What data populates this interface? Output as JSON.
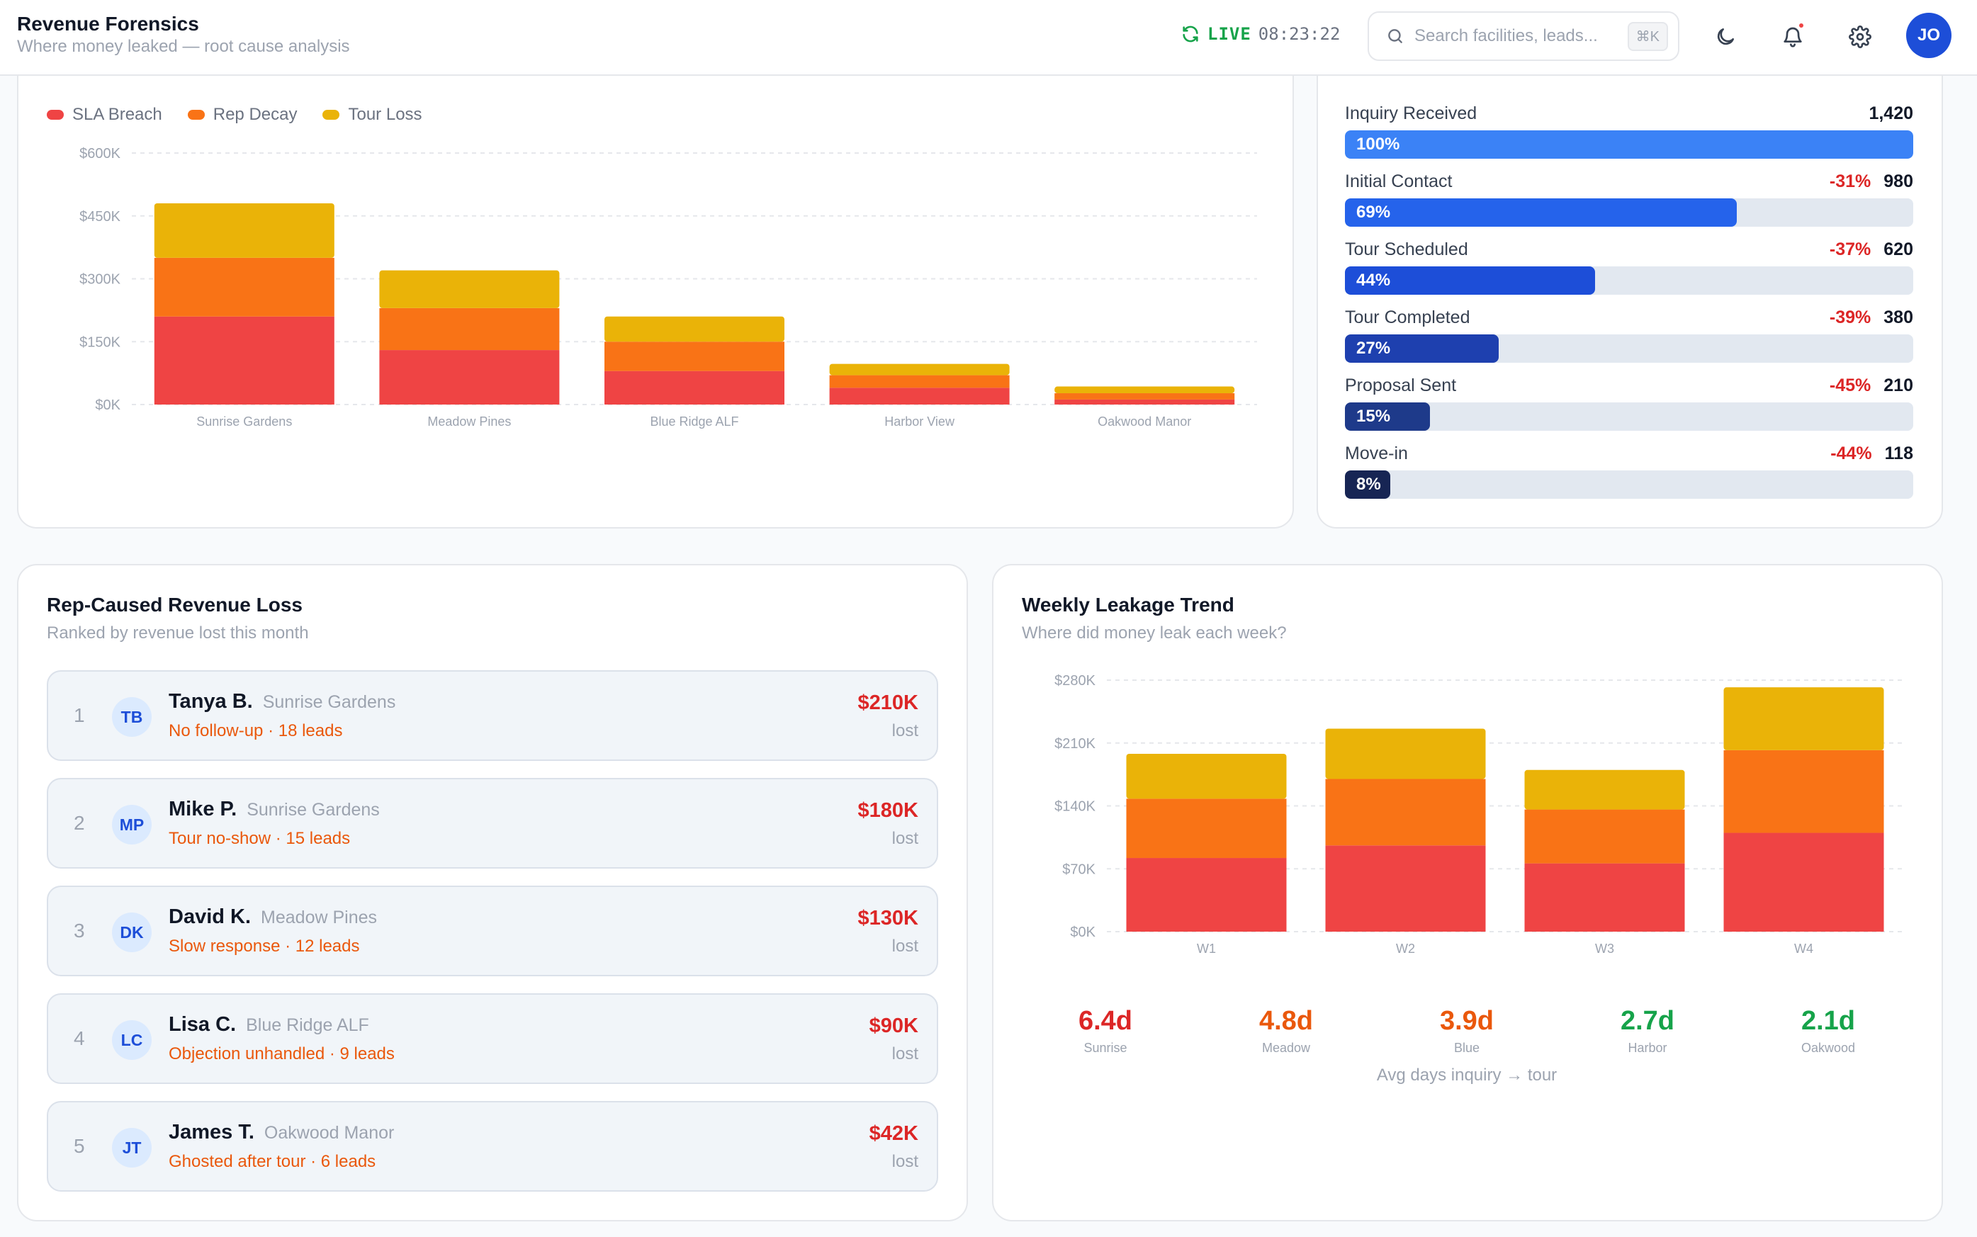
{
  "header": {
    "title": "Revenue Forensics",
    "subtitle": "Where money leaked — root cause analysis",
    "live_label": "LIVE",
    "live_time": "08:23:22",
    "search_placeholder": "Search facilities, leads...",
    "search_shortcut": "⌘K",
    "avatar_initials": "JO"
  },
  "colors": {
    "sla_breach": "#ef4444",
    "rep_decay": "#f97316",
    "tour_loss": "#eab308",
    "brand_blue": "#1d4ed8",
    "drop_red": "#dc2626"
  },
  "facility_chart": {
    "legend": [
      "SLA Breach",
      "Rep Decay",
      "Tour Loss"
    ]
  },
  "chart_data": [
    {
      "type": "bar",
      "stacked": true,
      "categories": [
        "Sunrise Gardens",
        "Meadow Pines",
        "Blue Ridge ALF",
        "Harbor View",
        "Oakwood Manor"
      ],
      "series": [
        {
          "name": "SLA Breach",
          "values": [
            210000,
            130000,
            80000,
            40000,
            12000
          ]
        },
        {
          "name": "Rep Decay",
          "values": [
            140000,
            100000,
            70000,
            30000,
            15000
          ]
        },
        {
          "name": "Tour Loss",
          "values": [
            130000,
            90000,
            60000,
            27000,
            16000
          ]
        }
      ],
      "yticks": [
        "$0K",
        "$150K",
        "$300K",
        "$450K",
        "$600K"
      ],
      "ylim": [
        0,
        600000
      ],
      "grid": true,
      "legend_position": "top-left"
    },
    {
      "type": "bar",
      "stacked": true,
      "title": "Weekly Leakage Trend",
      "categories": [
        "W1",
        "W2",
        "W3",
        "W4"
      ],
      "series": [
        {
          "name": "SLA Breach",
          "values": [
            82000,
            96000,
            76000,
            110000
          ]
        },
        {
          "name": "Rep Decay",
          "values": [
            66000,
            74000,
            60000,
            92000
          ]
        },
        {
          "name": "Tour Loss",
          "values": [
            50000,
            56000,
            44000,
            70000
          ]
        }
      ],
      "yticks": [
        "$0K",
        "$70K",
        "$140K",
        "$210K",
        "$280K"
      ],
      "ylim": [
        0,
        280000
      ],
      "grid": true
    }
  ],
  "funnel": {
    "stages": [
      {
        "label": "Inquiry Received",
        "drop": "",
        "count": "1,420",
        "pct_label": "100%",
        "pct": 100,
        "color": "#3b82f6"
      },
      {
        "label": "Initial Contact",
        "drop": "-31%",
        "count": "980",
        "pct_label": "69%",
        "pct": 69,
        "color": "#2563eb"
      },
      {
        "label": "Tour Scheduled",
        "drop": "-37%",
        "count": "620",
        "pct_label": "44%",
        "pct": 44,
        "color": "#1d4ed8"
      },
      {
        "label": "Tour Completed",
        "drop": "-39%",
        "count": "380",
        "pct_label": "27%",
        "pct": 27,
        "color": "#1e40af"
      },
      {
        "label": "Proposal Sent",
        "drop": "-45%",
        "count": "210",
        "pct_label": "15%",
        "pct": 15,
        "color": "#1e3a8a"
      },
      {
        "label": "Move-in",
        "drop": "-44%",
        "count": "118",
        "pct_label": "8%",
        "pct": 8,
        "color": "#172554"
      }
    ]
  },
  "rep_loss": {
    "title": "Rep-Caused Revenue Loss",
    "subtitle": "Ranked by revenue lost this month",
    "reps": [
      {
        "rank": "1",
        "initials": "TB",
        "name": "Tanya B.",
        "facility": "Sunrise Gardens",
        "reason": "No follow-up · 18 leads",
        "amount": "$210K",
        "lost": "lost"
      },
      {
        "rank": "2",
        "initials": "MP",
        "name": "Mike P.",
        "facility": "Sunrise Gardens",
        "reason": "Tour no-show · 15 leads",
        "amount": "$180K",
        "lost": "lost"
      },
      {
        "rank": "3",
        "initials": "DK",
        "name": "David K.",
        "facility": "Meadow Pines",
        "reason": "Slow response · 12 leads",
        "amount": "$130K",
        "lost": "lost"
      },
      {
        "rank": "4",
        "initials": "LC",
        "name": "Lisa C.",
        "facility": "Blue Ridge ALF",
        "reason": "Objection unhandled · 9 leads",
        "amount": "$90K",
        "lost": "lost"
      },
      {
        "rank": "5",
        "initials": "JT",
        "name": "James T.",
        "facility": "Oakwood Manor",
        "reason": "Ghosted after tour · 6 leads",
        "amount": "$42K",
        "lost": "lost"
      }
    ]
  },
  "weekly": {
    "title": "Weekly Leakage Trend",
    "subtitle": "Where did money leak each week?",
    "avg_days": [
      {
        "value": "6.4d",
        "label": "Sunrise",
        "color": "#dc2626"
      },
      {
        "value": "4.8d",
        "label": "Meadow",
        "color": "#ea580c"
      },
      {
        "value": "3.9d",
        "label": "Blue",
        "color": "#ea580c"
      },
      {
        "value": "2.7d",
        "label": "Harbor",
        "color": "#16a34a"
      },
      {
        "value": "2.1d",
        "label": "Oakwood",
        "color": "#16a34a"
      }
    ],
    "avg_caption": "Avg days inquiry → tour"
  }
}
